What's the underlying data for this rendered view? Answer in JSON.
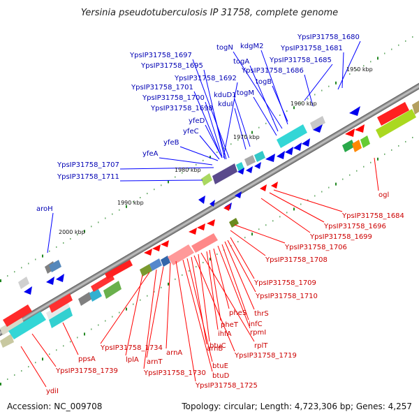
{
  "title": "Yersinia pseudotuberculosis IP 31758, complete genome",
  "accession": "Accession: NC_009708",
  "topology": "Topology: circular; Length: 4,723,306 bp; Genes: 4,257",
  "kbp_ticks": [
    "1950 kbp",
    "1960 kbp",
    "1970 kbp",
    "1980 kbp",
    "1990 kbp",
    "2000 kbp"
  ],
  "top_labels": [
    "YpsIP31758_1680",
    "YpsIP31758_1681",
    "YpsIP31758_1685",
    "YpsIP31758_1686",
    "kdgM2",
    "togN",
    "togA",
    "togB",
    "togM",
    "kduD1",
    "kduI",
    "YpsIP31758_1697",
    "YpsIP31758_1695",
    "YpsIP31758_1692",
    "YpsIP31758_1701",
    "YpsIP31758_1700",
    "YpsIP31758_1698",
    "yfeD",
    "yfeC",
    "yfeB",
    "yfeA",
    "YpsIP31758_1707",
    "YpsIP31758_1711",
    "aroH"
  ],
  "bottom_labels": [
    "ogl",
    "YpsIP31758_1684",
    "YpsIP31758_1696",
    "YpsIP31758_1699",
    "YpsIP31758_1706",
    "YpsIP31758_1708",
    "YpsIP31758_1709",
    "YpsIP31758_1710",
    "thrS",
    "infC",
    "rpmI",
    "pheS",
    "pheT",
    "ihfA",
    "rplT",
    "btuC",
    "YpsIP31758_1719",
    "arnB",
    "btuE",
    "btuD",
    "YpsIP31758_1725",
    "arnA",
    "arnT",
    "YpsIP31758_1730",
    "YpsIP31758_1734",
    "lplA",
    "ppsA",
    "YpsIP31758_1739",
    "ydiI"
  ]
}
